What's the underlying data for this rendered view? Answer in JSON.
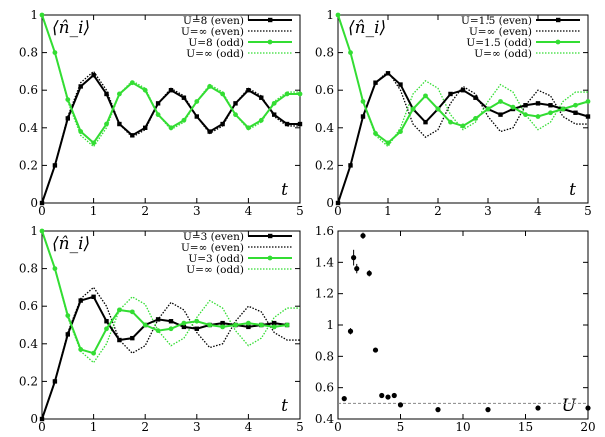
{
  "chart_data": [
    {
      "type": "line",
      "panel": "top-left",
      "annotation": "⟨n̂_i⟩",
      "xlabel": "t",
      "xlim": [
        0,
        5
      ],
      "ylim": [
        0,
        1
      ],
      "xticks": [
        "0",
        "1",
        "2",
        "3",
        "4",
        "5"
      ],
      "yticks": [
        "0",
        "0.2",
        "0.4",
        "0.6",
        "0.8",
        "1"
      ],
      "legend_position": "top-right",
      "series": [
        {
          "name": "U=8 (even)",
          "color": "#000000",
          "style": "solid-square-markers",
          "x": [
            0,
            0.25,
            0.5,
            0.75,
            1,
            1.25,
            1.5,
            1.75,
            2,
            2.25,
            2.5,
            2.75,
            3,
            3.25,
            3.5,
            3.75,
            4,
            4.25,
            4.5,
            4.75,
            5
          ],
          "values": [
            0,
            0.2,
            0.45,
            0.62,
            0.68,
            0.58,
            0.42,
            0.36,
            0.4,
            0.53,
            0.6,
            0.56,
            0.46,
            0.38,
            0.42,
            0.53,
            0.6,
            0.56,
            0.47,
            0.42,
            0.42
          ]
        },
        {
          "name": "U=∞ (even)",
          "color": "#000000",
          "style": "dotted",
          "x": [
            0,
            0.25,
            0.5,
            0.75,
            1,
            1.25,
            1.5,
            1.75,
            2,
            2.25,
            2.5,
            2.75,
            3,
            3.25,
            3.5,
            3.75,
            4,
            4.25,
            4.5,
            4.75,
            5
          ],
          "values": [
            0,
            0.2,
            0.46,
            0.64,
            0.7,
            0.6,
            0.42,
            0.35,
            0.39,
            0.53,
            0.61,
            0.57,
            0.46,
            0.37,
            0.41,
            0.53,
            0.61,
            0.57,
            0.46,
            0.41,
            0.41
          ]
        },
        {
          "name": "U=8 (odd)",
          "color": "#33dd33",
          "style": "solid-circle-markers",
          "x": [
            0,
            0.25,
            0.5,
            0.75,
            1,
            1.25,
            1.5,
            1.75,
            2,
            2.25,
            2.5,
            2.75,
            3,
            3.25,
            3.5,
            3.75,
            4,
            4.25,
            4.5,
            4.75,
            5
          ],
          "values": [
            1,
            0.8,
            0.55,
            0.38,
            0.32,
            0.42,
            0.58,
            0.64,
            0.6,
            0.47,
            0.4,
            0.44,
            0.54,
            0.62,
            0.58,
            0.47,
            0.4,
            0.44,
            0.53,
            0.58,
            0.58
          ]
        },
        {
          "name": "U=∞ (odd)",
          "color": "#33dd33",
          "style": "dotted",
          "x": [
            0,
            0.25,
            0.5,
            0.75,
            1,
            1.25,
            1.5,
            1.75,
            2,
            2.25,
            2.5,
            2.75,
            3,
            3.25,
            3.5,
            3.75,
            4,
            4.25,
            4.5,
            4.75,
            5
          ],
          "values": [
            1,
            0.8,
            0.54,
            0.36,
            0.3,
            0.4,
            0.58,
            0.65,
            0.61,
            0.47,
            0.39,
            0.43,
            0.54,
            0.63,
            0.59,
            0.47,
            0.39,
            0.43,
            0.54,
            0.59,
            0.59
          ]
        }
      ]
    },
    {
      "type": "line",
      "panel": "top-right",
      "annotation": "⟨n̂_i⟩",
      "xlabel": "t",
      "xlim": [
        0,
        5
      ],
      "ylim": [
        0,
        1
      ],
      "xticks": [
        "0",
        "1",
        "2",
        "3",
        "4",
        "5"
      ],
      "yticks": [
        "0",
        "0.2",
        "0.4",
        "0.6",
        "0.8",
        "1"
      ],
      "legend_position": "top-right",
      "series": [
        {
          "name": "U=1.5 (even)",
          "color": "#000000",
          "style": "solid-square-markers",
          "x": [
            0,
            0.25,
            0.5,
            0.75,
            1,
            1.25,
            1.5,
            1.75,
            2,
            2.25,
            2.5,
            2.75,
            3,
            3.25,
            3.5,
            3.75,
            4,
            4.25,
            4.5,
            4.75,
            5
          ],
          "values": [
            0,
            0.2,
            0.46,
            0.64,
            0.69,
            0.63,
            0.5,
            0.43,
            0.5,
            0.58,
            0.6,
            0.56,
            0.5,
            0.47,
            0.5,
            0.52,
            0.53,
            0.52,
            0.5,
            0.48,
            0.46
          ]
        },
        {
          "name": "U=∞ (even)",
          "color": "#000000",
          "style": "dotted",
          "x": [
            0,
            0.25,
            0.5,
            0.75,
            1,
            1.25,
            1.5,
            1.75,
            2,
            2.25,
            2.5,
            2.75,
            3,
            3.25,
            3.5,
            3.75,
            4,
            4.25,
            4.5,
            4.75,
            5
          ],
          "values": [
            0,
            0.2,
            0.46,
            0.64,
            0.7,
            0.6,
            0.42,
            0.35,
            0.39,
            0.53,
            0.62,
            0.58,
            0.46,
            0.38,
            0.4,
            0.52,
            0.6,
            0.57,
            0.46,
            0.42,
            0.42
          ]
        },
        {
          "name": "U=1.5 (odd)",
          "color": "#33dd33",
          "style": "solid-circle-markers",
          "x": [
            0,
            0.25,
            0.5,
            0.75,
            1,
            1.25,
            1.5,
            1.75,
            2,
            2.25,
            2.5,
            2.75,
            3,
            3.25,
            3.5,
            3.75,
            4,
            4.25,
            4.5,
            4.75,
            5
          ],
          "values": [
            1,
            0.8,
            0.54,
            0.37,
            0.32,
            0.38,
            0.5,
            0.57,
            0.5,
            0.43,
            0.41,
            0.45,
            0.5,
            0.54,
            0.51,
            0.47,
            0.46,
            0.48,
            0.5,
            0.52,
            0.54
          ]
        },
        {
          "name": "U=∞ (odd)",
          "color": "#33dd33",
          "style": "dotted",
          "x": [
            0,
            0.25,
            0.5,
            0.75,
            1,
            1.25,
            1.5,
            1.75,
            2,
            2.25,
            2.5,
            2.75,
            3,
            3.25,
            3.5,
            3.75,
            4,
            4.25,
            4.5,
            4.75,
            5
          ],
          "values": [
            1,
            0.8,
            0.54,
            0.36,
            0.3,
            0.4,
            0.58,
            0.65,
            0.61,
            0.47,
            0.39,
            0.43,
            0.54,
            0.63,
            0.59,
            0.47,
            0.39,
            0.43,
            0.54,
            0.59,
            0.59
          ]
        }
      ]
    },
    {
      "type": "line",
      "panel": "bottom-left",
      "annotation": "⟨n̂_i⟩",
      "xlabel": "t",
      "xlim": [
        0,
        5
      ],
      "ylim": [
        0,
        1
      ],
      "xticks": [
        "0",
        "1",
        "2",
        "3",
        "4",
        "5"
      ],
      "yticks": [
        "0",
        "0.2",
        "0.4",
        "0.6",
        "0.8",
        "1"
      ],
      "legend_position": "top-right",
      "series": [
        {
          "name": "U=3 (even)",
          "color": "#000000",
          "style": "solid-square-markers",
          "x": [
            0,
            0.25,
            0.5,
            0.75,
            1,
            1.25,
            1.5,
            1.75,
            2,
            2.25,
            2.5,
            2.75,
            3,
            3.25,
            3.5,
            3.75,
            4,
            4.25,
            4.5,
            4.75
          ],
          "values": [
            0,
            0.2,
            0.45,
            0.63,
            0.65,
            0.52,
            0.42,
            0.43,
            0.5,
            0.53,
            0.52,
            0.49,
            0.48,
            0.5,
            0.51,
            0.5,
            0.49,
            0.5,
            0.51,
            0.5
          ]
        },
        {
          "name": "U=∞ (even)",
          "color": "#000000",
          "style": "dotted",
          "x": [
            0,
            0.25,
            0.5,
            0.75,
            1,
            1.25,
            1.5,
            1.75,
            2,
            2.25,
            2.5,
            2.75,
            3,
            3.25,
            3.5,
            3.75,
            4,
            4.25,
            4.5,
            4.75,
            5
          ],
          "values": [
            0,
            0.2,
            0.46,
            0.64,
            0.7,
            0.6,
            0.42,
            0.35,
            0.39,
            0.53,
            0.62,
            0.58,
            0.46,
            0.38,
            0.4,
            0.52,
            0.6,
            0.57,
            0.46,
            0.42,
            0.42
          ]
        },
        {
          "name": "U=3 (odd)",
          "color": "#33dd33",
          "style": "solid-circle-markers",
          "x": [
            0,
            0.25,
            0.5,
            0.75,
            1,
            1.25,
            1.5,
            1.75,
            2,
            2.25,
            2.5,
            2.75,
            3,
            3.25,
            3.5,
            3.75,
            4,
            4.25,
            4.5,
            4.75
          ],
          "values": [
            1,
            0.8,
            0.55,
            0.37,
            0.35,
            0.48,
            0.58,
            0.57,
            0.5,
            0.47,
            0.48,
            0.51,
            0.52,
            0.5,
            0.49,
            0.5,
            0.51,
            0.5,
            0.49,
            0.5
          ]
        },
        {
          "name": "U=∞ (odd)",
          "color": "#33dd33",
          "style": "dotted",
          "x": [
            0,
            0.25,
            0.5,
            0.75,
            1,
            1.25,
            1.5,
            1.75,
            2,
            2.25,
            2.5,
            2.75,
            3,
            3.25,
            3.5,
            3.75,
            4,
            4.25,
            4.5,
            4.75,
            5
          ],
          "values": [
            1,
            0.8,
            0.54,
            0.36,
            0.3,
            0.4,
            0.58,
            0.65,
            0.61,
            0.47,
            0.39,
            0.43,
            0.54,
            0.63,
            0.59,
            0.47,
            0.39,
            0.43,
            0.54,
            0.59,
            0.59
          ]
        }
      ]
    },
    {
      "type": "scatter",
      "panel": "bottom-right",
      "xlabel": "U",
      "xlim": [
        0,
        20
      ],
      "ylim": [
        0.4,
        1.6
      ],
      "xticks": [
        "0",
        "5",
        "10",
        "15",
        "20"
      ],
      "yticks": [
        "0.4",
        "0.6",
        "0.8",
        "1",
        "1.2",
        "1.4",
        "1.6"
      ],
      "reference_line": {
        "y": 0.5,
        "style": "dashed",
        "color": "#888888"
      },
      "series": [
        {
          "x": [
            0.5,
            1,
            1.25,
            1.5,
            2,
            2.5,
            3,
            3.5,
            4,
            4.5,
            5,
            8,
            12,
            16,
            20
          ],
          "values": [
            0.53,
            0.96,
            1.43,
            1.36,
            1.57,
            1.33,
            0.84,
            0.55,
            0.54,
            0.55,
            0.49,
            0.46,
            0.46,
            0.47,
            0.47
          ],
          "errors": [
            0.01,
            0.02,
            0.05,
            0.03,
            0.02,
            0.02,
            0.01,
            0.01,
            0.01,
            0.01,
            0.01,
            0.01,
            0.01,
            0.01,
            0.01
          ]
        }
      ]
    }
  ]
}
